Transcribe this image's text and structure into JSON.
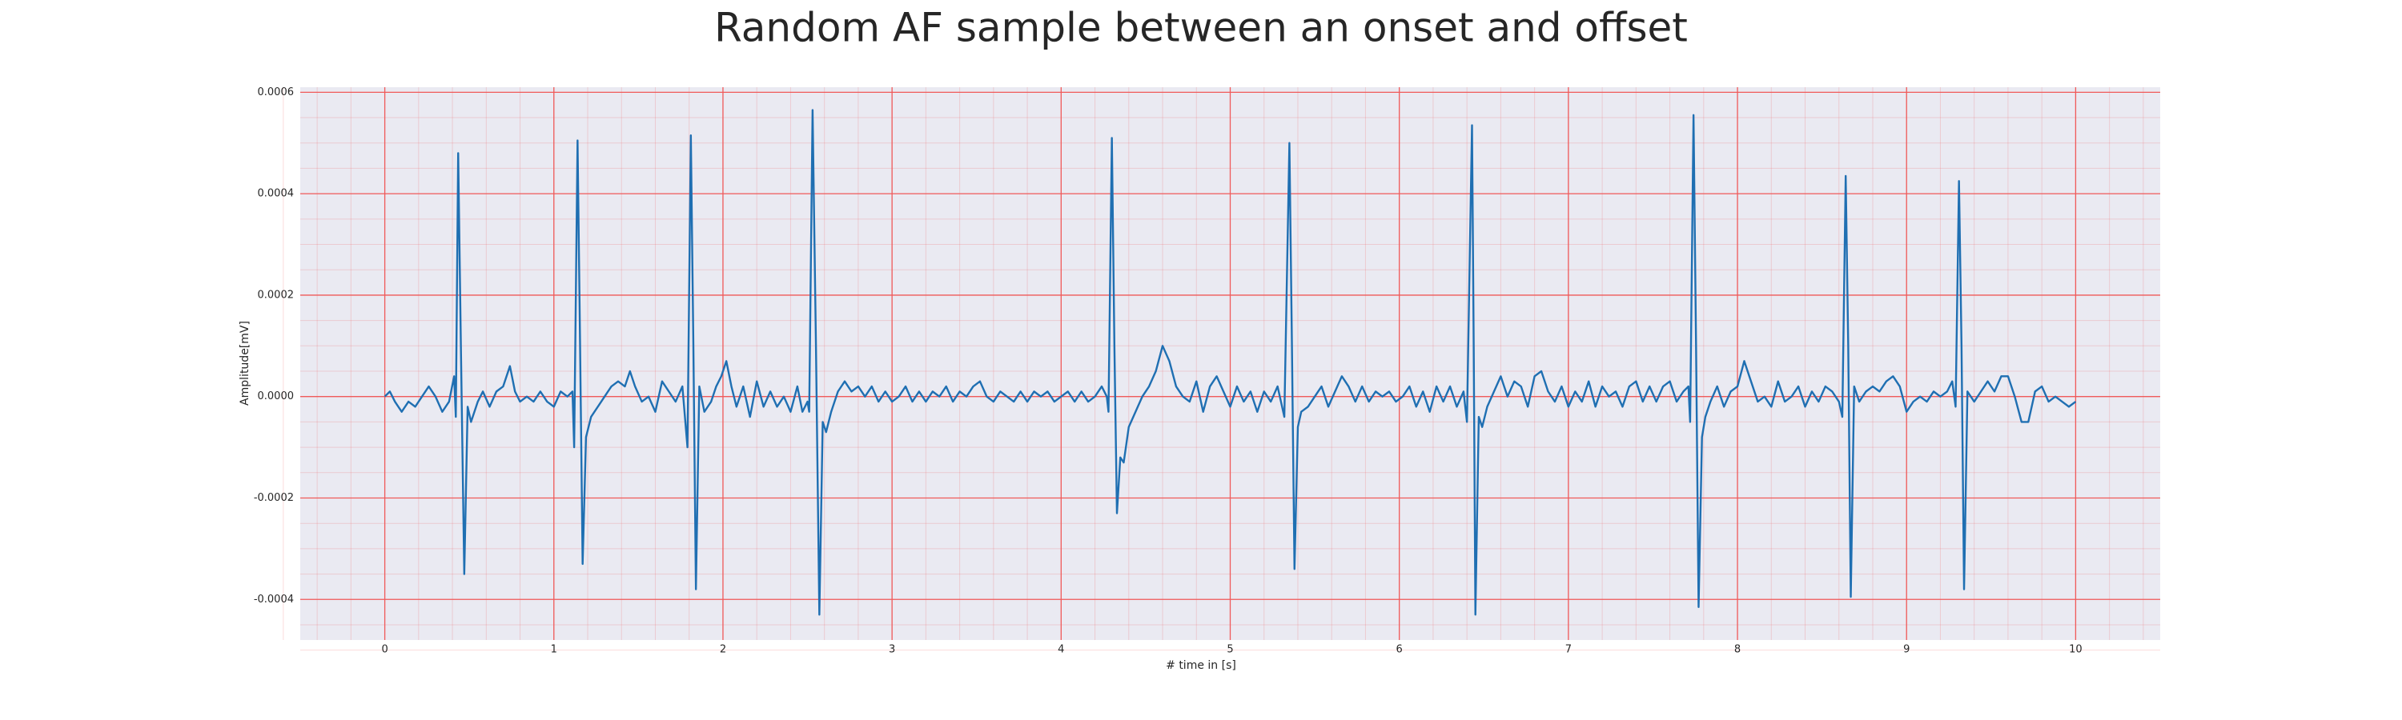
{
  "chart_data": {
    "type": "line",
    "title": "Random AF sample between an onset and offset",
    "xlabel": "# time in [s]",
    "ylabel": "Amplitude[mV]",
    "color": "#1f6fb2",
    "grid": true,
    "grid_color": "#f05a5a",
    "minor_grid": true,
    "background": "#eaeaf2",
    "xlim": [
      -0.5,
      10.5
    ],
    "xticks": [
      0,
      1,
      2,
      3,
      4,
      5,
      6,
      7,
      8,
      9,
      10
    ],
    "ylim": [
      -0.00048,
      0.00061
    ],
    "yticks": [
      {
        "value": -0.0004,
        "label": "-0.0004"
      },
      {
        "value": -0.0002,
        "label": "-0.0002"
      },
      {
        "value": 0,
        "label": "0.0000"
      },
      {
        "value": 0.0002,
        "label": "0.0002"
      },
      {
        "value": 0.0004,
        "label": "0.0004"
      },
      {
        "value": 0.0006,
        "label": "0.0006"
      }
    ],
    "x": [
      0.0,
      0.03,
      0.06,
      0.1,
      0.14,
      0.18,
      0.22,
      0.26,
      0.3,
      0.34,
      0.38,
      0.41,
      0.42,
      0.434,
      0.45,
      0.47,
      0.49,
      0.51,
      0.55,
      0.58,
      0.62,
      0.66,
      0.7,
      0.74,
      0.77,
      0.8,
      0.84,
      0.88,
      0.92,
      0.96,
      1.0,
      1.04,
      1.08,
      1.11,
      1.12,
      1.14,
      1.155,
      1.17,
      1.19,
      1.22,
      1.26,
      1.3,
      1.34,
      1.38,
      1.42,
      1.45,
      1.48,
      1.52,
      1.56,
      1.6,
      1.64,
      1.68,
      1.72,
      1.76,
      1.79,
      1.81,
      1.825,
      1.84,
      1.86,
      1.89,
      1.93,
      1.96,
      1.99,
      2.02,
      2.05,
      2.08,
      2.12,
      2.16,
      2.2,
      2.24,
      2.28,
      2.32,
      2.36,
      2.4,
      2.44,
      2.47,
      2.5,
      2.51,
      2.53,
      2.55,
      2.57,
      2.59,
      2.61,
      2.64,
      2.68,
      2.72,
      2.76,
      2.8,
      2.84,
      2.88,
      2.92,
      2.96,
      3.0,
      3.04,
      3.08,
      3.12,
      3.16,
      3.2,
      3.24,
      3.28,
      3.32,
      3.36,
      3.4,
      3.44,
      3.48,
      3.52,
      3.56,
      3.6,
      3.64,
      3.68,
      3.72,
      3.76,
      3.8,
      3.84,
      3.88,
      3.92,
      3.96,
      4.0,
      4.04,
      4.08,
      4.12,
      4.16,
      4.2,
      4.24,
      4.27,
      4.28,
      4.3,
      4.315,
      4.33,
      4.35,
      4.37,
      4.4,
      4.44,
      4.48,
      4.52,
      4.56,
      4.6,
      4.64,
      4.68,
      4.72,
      4.76,
      4.8,
      4.84,
      4.88,
      4.92,
      4.96,
      5.0,
      5.04,
      5.08,
      5.12,
      5.16,
      5.2,
      5.24,
      5.28,
      5.32,
      5.35,
      5.365,
      5.38,
      5.4,
      5.42,
      5.46,
      5.5,
      5.54,
      5.58,
      5.62,
      5.66,
      5.7,
      5.74,
      5.78,
      5.82,
      5.86,
      5.9,
      5.94,
      5.98,
      6.02,
      6.06,
      6.1,
      6.14,
      6.18,
      6.22,
      6.26,
      6.3,
      6.34,
      6.38,
      6.4,
      6.43,
      6.44,
      6.45,
      6.47,
      6.49,
      6.52,
      6.56,
      6.6,
      6.64,
      6.68,
      6.72,
      6.76,
      6.8,
      6.84,
      6.88,
      6.92,
      6.96,
      7.0,
      7.04,
      7.08,
      7.12,
      7.16,
      7.2,
      7.24,
      7.28,
      7.32,
      7.36,
      7.4,
      7.44,
      7.48,
      7.52,
      7.56,
      7.6,
      7.64,
      7.68,
      7.71,
      7.72,
      7.74,
      7.755,
      7.77,
      7.79,
      7.81,
      7.84,
      7.88,
      7.92,
      7.96,
      8.0,
      8.04,
      8.08,
      8.12,
      8.16,
      8.2,
      8.24,
      8.28,
      8.32,
      8.36,
      8.4,
      8.44,
      8.48,
      8.52,
      8.56,
      8.6,
      8.62,
      8.64,
      8.655,
      8.67,
      8.69,
      8.72,
      8.76,
      8.8,
      8.84,
      8.88,
      8.92,
      8.96,
      9.0,
      9.04,
      9.08,
      9.12,
      9.16,
      9.2,
      9.24,
      9.27,
      9.29,
      9.31,
      9.325,
      9.34,
      9.36,
      9.4,
      9.44,
      9.48,
      9.52,
      9.56,
      9.6,
      9.64,
      9.68,
      9.72,
      9.76,
      9.8,
      9.84,
      9.88,
      9.92,
      9.96,
      10.0
    ],
    "values": [
      0.0,
      1e-05,
      -1e-05,
      -3e-05,
      -1e-05,
      -2e-05,
      0.0,
      2e-05,
      0.0,
      -3e-05,
      -1e-05,
      4e-05,
      -4e-05,
      0.00048,
      0.0001,
      -0.00035,
      -2e-05,
      -5e-05,
      -1e-05,
      1e-05,
      -2e-05,
      1e-05,
      2e-05,
      6e-05,
      1e-05,
      -1e-05,
      0.0,
      -1e-05,
      1e-05,
      -1e-05,
      -2e-05,
      1e-05,
      0.0,
      1e-05,
      -0.0001,
      0.000505,
      0.0001,
      -0.00033,
      -8e-05,
      -4e-05,
      -2e-05,
      0.0,
      2e-05,
      3e-05,
      2e-05,
      5e-05,
      2e-05,
      -1e-05,
      0.0,
      -3e-05,
      3e-05,
      1e-05,
      -1e-05,
      2e-05,
      -0.0001,
      0.000515,
      0.0001,
      -0.00038,
      2e-05,
      -3e-05,
      -1e-05,
      2e-05,
      4e-05,
      7e-05,
      2e-05,
      -2e-05,
      2e-05,
      -4e-05,
      3e-05,
      -2e-05,
      1e-05,
      -2e-05,
      0.0,
      -3e-05,
      2e-05,
      -3e-05,
      -1e-05,
      -3e-05,
      0.000565,
      0.0001,
      -0.00043,
      -5e-05,
      -7e-05,
      -3e-05,
      1e-05,
      3e-05,
      1e-05,
      2e-05,
      0.0,
      2e-05,
      -1e-05,
      1e-05,
      -1e-05,
      0.0,
      2e-05,
      -1e-05,
      1e-05,
      -1e-05,
      1e-05,
      0.0,
      2e-05,
      -1e-05,
      1e-05,
      0.0,
      2e-05,
      3e-05,
      0.0,
      -1e-05,
      1e-05,
      0.0,
      -1e-05,
      1e-05,
      -1e-05,
      1e-05,
      0.0,
      1e-05,
      -1e-05,
      0.0,
      1e-05,
      -1e-05,
      1e-05,
      -1e-05,
      0.0,
      2e-05,
      0.0,
      -3e-05,
      0.00051,
      0.0001,
      -0.00023,
      -0.00012,
      -0.00013,
      -6e-05,
      -3e-05,
      0.0,
      2e-05,
      5e-05,
      0.0001,
      7e-05,
      2e-05,
      0.0,
      -1e-05,
      3e-05,
      -3e-05,
      2e-05,
      4e-05,
      1e-05,
      -2e-05,
      2e-05,
      -1e-05,
      1e-05,
      -3e-05,
      1e-05,
      -1e-05,
      2e-05,
      -4e-05,
      0.0005,
      0.0001,
      -0.00034,
      -6e-05,
      -3e-05,
      -2e-05,
      0.0,
      2e-05,
      -2e-05,
      1e-05,
      4e-05,
      2e-05,
      -1e-05,
      2e-05,
      -1e-05,
      1e-05,
      0.0,
      1e-05,
      -1e-05,
      0.0,
      2e-05,
      -2e-05,
      1e-05,
      -3e-05,
      2e-05,
      -1e-05,
      2e-05,
      -2e-05,
      1e-05,
      -5e-05,
      0.000535,
      0.0001,
      -0.00043,
      -4e-05,
      -6e-05,
      -2e-05,
      1e-05,
      4e-05,
      0.0,
      3e-05,
      2e-05,
      -2e-05,
      4e-05,
      5e-05,
      1e-05,
      -1e-05,
      2e-05,
      -2e-05,
      1e-05,
      -1e-05,
      3e-05,
      -2e-05,
      2e-05,
      0.0,
      1e-05,
      -2e-05,
      2e-05,
      3e-05,
      -1e-05,
      2e-05,
      -1e-05,
      2e-05,
      3e-05,
      -1e-05,
      1e-05,
      2e-05,
      -5e-05,
      0.000555,
      0.0001,
      -0.000415,
      -8e-05,
      -4e-05,
      -1e-05,
      2e-05,
      -2e-05,
      1e-05,
      2e-05,
      7e-05,
      3e-05,
      -1e-05,
      0.0,
      -2e-05,
      3e-05,
      -1e-05,
      0.0,
      2e-05,
      -2e-05,
      1e-05,
      -1e-05,
      2e-05,
      1e-05,
      -1e-05,
      -4e-05,
      0.000435,
      0.0001,
      -0.000395,
      2e-05,
      -1e-05,
      1e-05,
      2e-05,
      1e-05,
      3e-05,
      4e-05,
      2e-05,
      -3e-05,
      -1e-05,
      0.0,
      -1e-05,
      1e-05,
      0.0,
      1e-05,
      3e-05,
      -2e-05,
      0.000425,
      0.0001,
      -0.00038,
      1e-05,
      -1e-05,
      1e-05,
      3e-05,
      1e-05,
      4e-05,
      4e-05,
      0.0,
      -5e-05,
      -5e-05,
      1e-05,
      2e-05,
      -1e-05,
      0.0,
      -1e-05,
      -2e-05,
      -1e-05
    ]
  }
}
